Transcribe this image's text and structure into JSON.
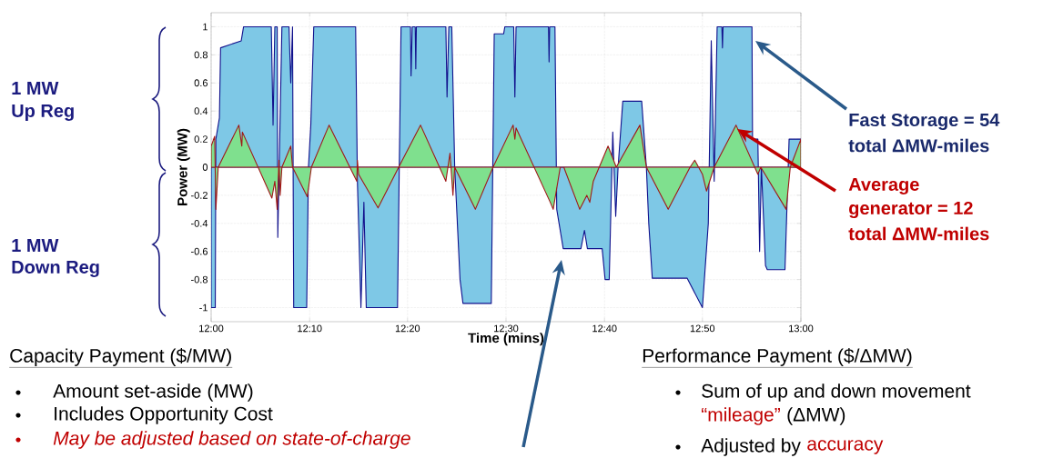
{
  "chart_data": {
    "type": "area",
    "xlabel": "Time (mins)",
    "ylabel": "Power (MW)",
    "xlim": [
      12,
      13
    ],
    "ylim": [
      -1.1,
      1.1
    ],
    "xticks": [
      {
        "value": 12,
        "label": "12:00"
      },
      {
        "value": 12.167,
        "label": "12:10"
      },
      {
        "value": 12.333,
        "label": "12:20"
      },
      {
        "value": 12.5,
        "label": "12:30"
      },
      {
        "value": 12.667,
        "label": "12:40"
      },
      {
        "value": 12.833,
        "label": "12:50"
      },
      {
        "value": 13,
        "label": "13:00"
      }
    ],
    "yticks": [
      -1,
      -0.8,
      -0.6,
      -0.4,
      -0.2,
      0,
      0.2,
      0.4,
      0.6,
      0.8,
      1
    ],
    "grid": true,
    "marker": "none",
    "series": [
      {
        "color": "#7ec8e6",
        "x": [
          12.0,
          12.007,
          12.008,
          12.014,
          12.016,
          12.051,
          12.055,
          12.102,
          12.105,
          12.108,
          12.112,
          12.113,
          12.12,
          12.132,
          12.135,
          12.138,
          12.14,
          12.162,
          12.165,
          12.169,
          12.174,
          12.245,
          12.248,
          12.254,
          12.259,
          12.263,
          12.316,
          12.322,
          12.338,
          12.339,
          12.341,
          12.346,
          12.347,
          12.348,
          12.398,
          12.4,
          12.403,
          12.408,
          12.413,
          12.422,
          12.427,
          12.475,
          12.48,
          12.496,
          12.498,
          12.513,
          12.515,
          12.517,
          12.572,
          12.573,
          12.574,
          12.583,
          12.586,
          12.597,
          12.627,
          12.633,
          12.638,
          12.663,
          12.668,
          12.675,
          12.681,
          12.686,
          12.69,
          12.698,
          12.73,
          12.738,
          12.742,
          12.748,
          12.807,
          12.833,
          12.843,
          12.848,
          12.853,
          12.858,
          12.866,
          12.867,
          12.868,
          12.917,
          12.918,
          12.927,
          12.93,
          12.933,
          12.94,
          12.943,
          12.973,
          12.98,
          13.0
        ],
        "values": [
          -1,
          -1,
          0.2,
          0.35,
          0.85,
          0.9,
          1,
          1,
          0.3,
          1,
          1,
          -0.5,
          1,
          1,
          0.6,
          1,
          -1,
          -1,
          0,
          0.3,
          1,
          1,
          -0.1,
          -1,
          -0.25,
          -1,
          -1,
          1,
          1,
          0.65,
          1,
          1,
          0.7,
          1,
          1,
          0.5,
          1,
          1,
          0,
          -0.8,
          -0.97,
          -0.97,
          0.95,
          0.95,
          1,
          1,
          0.5,
          1,
          1,
          0.75,
          1,
          1,
          -0.3,
          -0.58,
          -0.58,
          -0.45,
          -0.58,
          -0.58,
          -0.8,
          -0.8,
          0.25,
          -0.35,
          0,
          0.47,
          0.47,
          0,
          -0.4,
          -0.79,
          -0.79,
          -1,
          -0.4,
          0.9,
          -0.1,
          1,
          1,
          0.85,
          1,
          1,
          0.2,
          0.2,
          -0.6,
          0,
          -0.7,
          -0.73,
          -0.73,
          0.2,
          0.2
        ]
      },
      {
        "color": "#7fe08e",
        "x": [
          12.0,
          12.006,
          12.008,
          12.012,
          12.047,
          12.052,
          12.053,
          12.103,
          12.108,
          12.112,
          12.115,
          12.117,
          12.12,
          12.135,
          12.138,
          12.163,
          12.17,
          12.2,
          12.247,
          12.248,
          12.25,
          12.283,
          12.318,
          12.355,
          12.398,
          12.405,
          12.41,
          12.413,
          12.448,
          12.478,
          12.512,
          12.515,
          12.517,
          12.575,
          12.58,
          12.592,
          12.598,
          12.625,
          12.637,
          12.642,
          12.648,
          12.673,
          12.687,
          12.727,
          12.738,
          12.775,
          12.812,
          12.82,
          12.833,
          12.84,
          12.853,
          12.89,
          12.927,
          12.932,
          12.975,
          12.982,
          13.0
        ],
        "values": [
          0.15,
          0.22,
          -0.3,
          0,
          0.3,
          0.15,
          0.25,
          -0.22,
          -0.1,
          -0.3,
          0.05,
          -0.2,
          0,
          0.15,
          0,
          -0.21,
          0,
          0.3,
          -0.1,
          0.05,
          -0.05,
          -0.29,
          0,
          0.3,
          -0.1,
          0.1,
          -0.2,
          0,
          -0.3,
          0,
          0.3,
          0.2,
          0.28,
          -0.25,
          -0.3,
          0,
          0,
          -0.3,
          -0.2,
          -0.25,
          -0.1,
          0.15,
          0,
          0.3,
          0,
          -0.3,
          0,
          0.05,
          -0.05,
          -0.17,
          0,
          0.3,
          -0.05,
          0,
          -0.3,
          0,
          0.2
        ]
      }
    ],
    "annotations": [
      "1 MW",
      "Up Reg",
      "1 MW",
      "Down Reg",
      "Fast Storage = 54",
      "total ΔMW-miles",
      "Average",
      "generator = 12",
      "total ΔMW-miles",
      "Capacity Payment ($/MW)",
      "Amount set-aside (MW)",
      "Includes Opportunity Cost",
      "May be adjusted based on state-of-charge",
      "Performance Payment ($/ΔMW)",
      "Sum of up and down movement",
      "“mileage”",
      "(ΔMW)",
      "Adjusted by",
      "accuracy"
    ]
  }
}
